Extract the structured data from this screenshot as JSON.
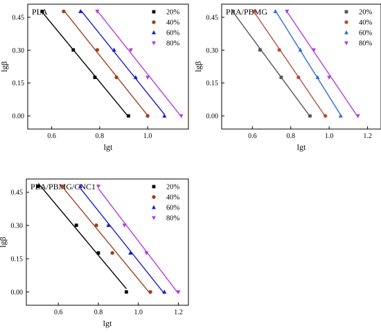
{
  "chart_data": [
    {
      "type": "scatter",
      "title": "PLA",
      "xlabel": "lgt",
      "ylabel": "lgβ",
      "xlim": [
        0.5,
        1.17
      ],
      "ylim": [
        -0.06,
        0.51
      ],
      "xticks": [
        "0.6",
        "0.8",
        "1.0"
      ],
      "xtick_values": [
        0.6,
        0.8,
        1.0
      ],
      "yticks": [
        "0.00",
        "0.15",
        "0.30",
        "0.45"
      ],
      "ytick_values": [
        0.0,
        0.15,
        0.3,
        0.45
      ],
      "legend_position": "top-right",
      "series": [
        {
          "name": "20%",
          "color": "#000000",
          "marker": "square",
          "x": [
            0.56,
            0.69,
            0.78,
            0.92
          ],
          "y": [
            0.477,
            0.301,
            0.176,
            0.0
          ]
        },
        {
          "name": "40%",
          "color": "#a0401c",
          "marker": "circle",
          "x": [
            0.65,
            0.79,
            0.87,
            1.0
          ],
          "y": [
            0.477,
            0.301,
            0.176,
            0.0
          ]
        },
        {
          "name": "60%",
          "color": "#1a1ad6",
          "marker": "triangle-up",
          "x": [
            0.72,
            0.86,
            0.95,
            1.07
          ],
          "y": [
            0.477,
            0.301,
            0.176,
            0.0
          ]
        },
        {
          "name": "80%",
          "color": "#b43cdc",
          "marker": "triangle-down",
          "x": [
            0.79,
            0.93,
            1.0,
            1.14
          ],
          "y": [
            0.477,
            0.301,
            0.176,
            0.0
          ]
        }
      ]
    },
    {
      "type": "scatter",
      "title": "PLA/PBMG",
      "xlabel": "lgt",
      "ylabel": "lgβ",
      "xlim": [
        0.44,
        1.27
      ],
      "ylim": [
        -0.06,
        0.51
      ],
      "xticks": [
        "0.6",
        "0.8",
        "1.0",
        "1.2"
      ],
      "xtick_values": [
        0.6,
        0.8,
        1.0,
        1.2
      ],
      "yticks": [
        "0.00",
        "0.15",
        "0.30",
        "0.45"
      ],
      "ytick_values": [
        0.0,
        0.15,
        0.3,
        0.45
      ],
      "legend_position": "top-right",
      "series": [
        {
          "name": "20%",
          "color": "#555555",
          "marker": "square",
          "x": [
            0.5,
            0.64,
            0.75,
            0.9
          ],
          "y": [
            0.477,
            0.301,
            0.176,
            0.0
          ]
        },
        {
          "name": "40%",
          "color": "#b4503c",
          "marker": "circle",
          "x": [
            0.61,
            0.74,
            0.84,
            0.98
          ],
          "y": [
            0.477,
            0.301,
            0.176,
            0.0
          ]
        },
        {
          "name": "60%",
          "color": "#2a6ce0",
          "marker": "triangle-up",
          "x": [
            0.72,
            0.85,
            0.94,
            1.06
          ],
          "y": [
            0.477,
            0.301,
            0.176,
            0.0
          ]
        },
        {
          "name": "80%",
          "color": "#b43cdc",
          "marker": "triangle-down",
          "x": [
            0.78,
            0.92,
            1.0,
            1.15
          ],
          "y": [
            0.477,
            0.301,
            0.176,
            0.0
          ]
        }
      ]
    },
    {
      "type": "scatter",
      "title": "PLA/PBMG/CNC1",
      "xlabel": "lgt",
      "ylabel": "lgβ",
      "xlim": [
        0.44,
        1.25
      ],
      "ylim": [
        -0.06,
        0.51
      ],
      "xticks": [
        "0.6",
        "0.8",
        "1.0",
        "1.2"
      ],
      "xtick_values": [
        0.6,
        0.8,
        1.0,
        1.2
      ],
      "yticks": [
        "0.00",
        "0.15",
        "0.30",
        "0.45"
      ],
      "ytick_values": [
        0.0,
        0.15,
        0.3,
        0.45
      ],
      "legend_position": "top-right",
      "series": [
        {
          "name": "20%",
          "color": "#000000",
          "marker": "square",
          "x": [
            0.5,
            0.69,
            0.8,
            0.94
          ],
          "y": [
            0.477,
            0.301,
            0.176,
            0.0
          ]
        },
        {
          "name": "40%",
          "color": "#a0401c",
          "marker": "circle",
          "x": [
            0.62,
            0.79,
            0.87,
            1.06
          ],
          "y": [
            0.477,
            0.301,
            0.176,
            0.0
          ]
        },
        {
          "name": "60%",
          "color": "#1a1ad6",
          "marker": "triangle-up",
          "x": [
            0.71,
            0.85,
            0.96,
            1.13
          ],
          "y": [
            0.477,
            0.301,
            0.176,
            0.0
          ]
        },
        {
          "name": "80%",
          "color": "#b43cdc",
          "marker": "triangle-down",
          "x": [
            0.8,
            0.93,
            1.04,
            1.2
          ],
          "y": [
            0.477,
            0.301,
            0.176,
            0.0
          ]
        }
      ]
    }
  ]
}
